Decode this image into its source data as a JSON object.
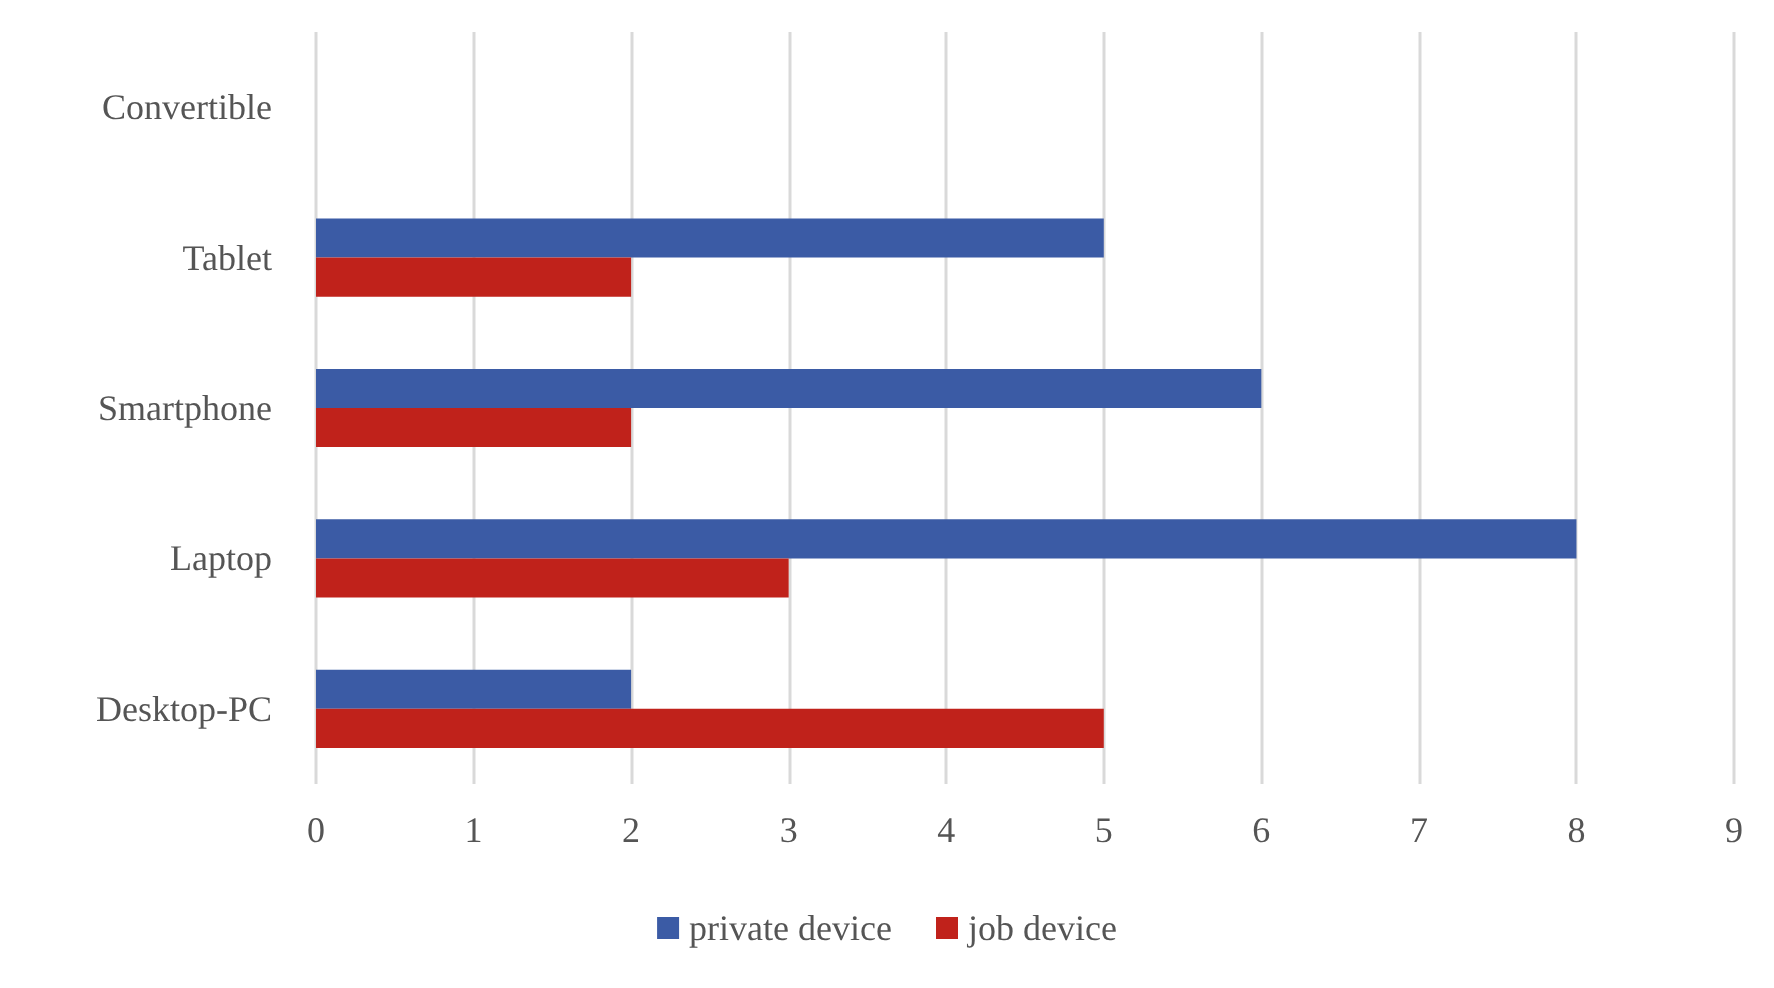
{
  "chart_data": {
    "type": "bar",
    "orientation": "horizontal",
    "categories": [
      "Convertible",
      "Tablet",
      "Smartphone",
      "Laptop",
      "Desktop-PC"
    ],
    "series": [
      {
        "name": "private device",
        "color": "#3b5ba5",
        "values": [
          0,
          5,
          6,
          8,
          2
        ]
      },
      {
        "name": "job device",
        "color": "#c0221b",
        "values": [
          0,
          2,
          2,
          3,
          5
        ]
      }
    ],
    "xlim": [
      0,
      9
    ],
    "xticks": [
      0,
      1,
      2,
      3,
      4,
      5,
      6,
      7,
      8,
      9
    ],
    "grid": "x",
    "legend": "bottom"
  }
}
